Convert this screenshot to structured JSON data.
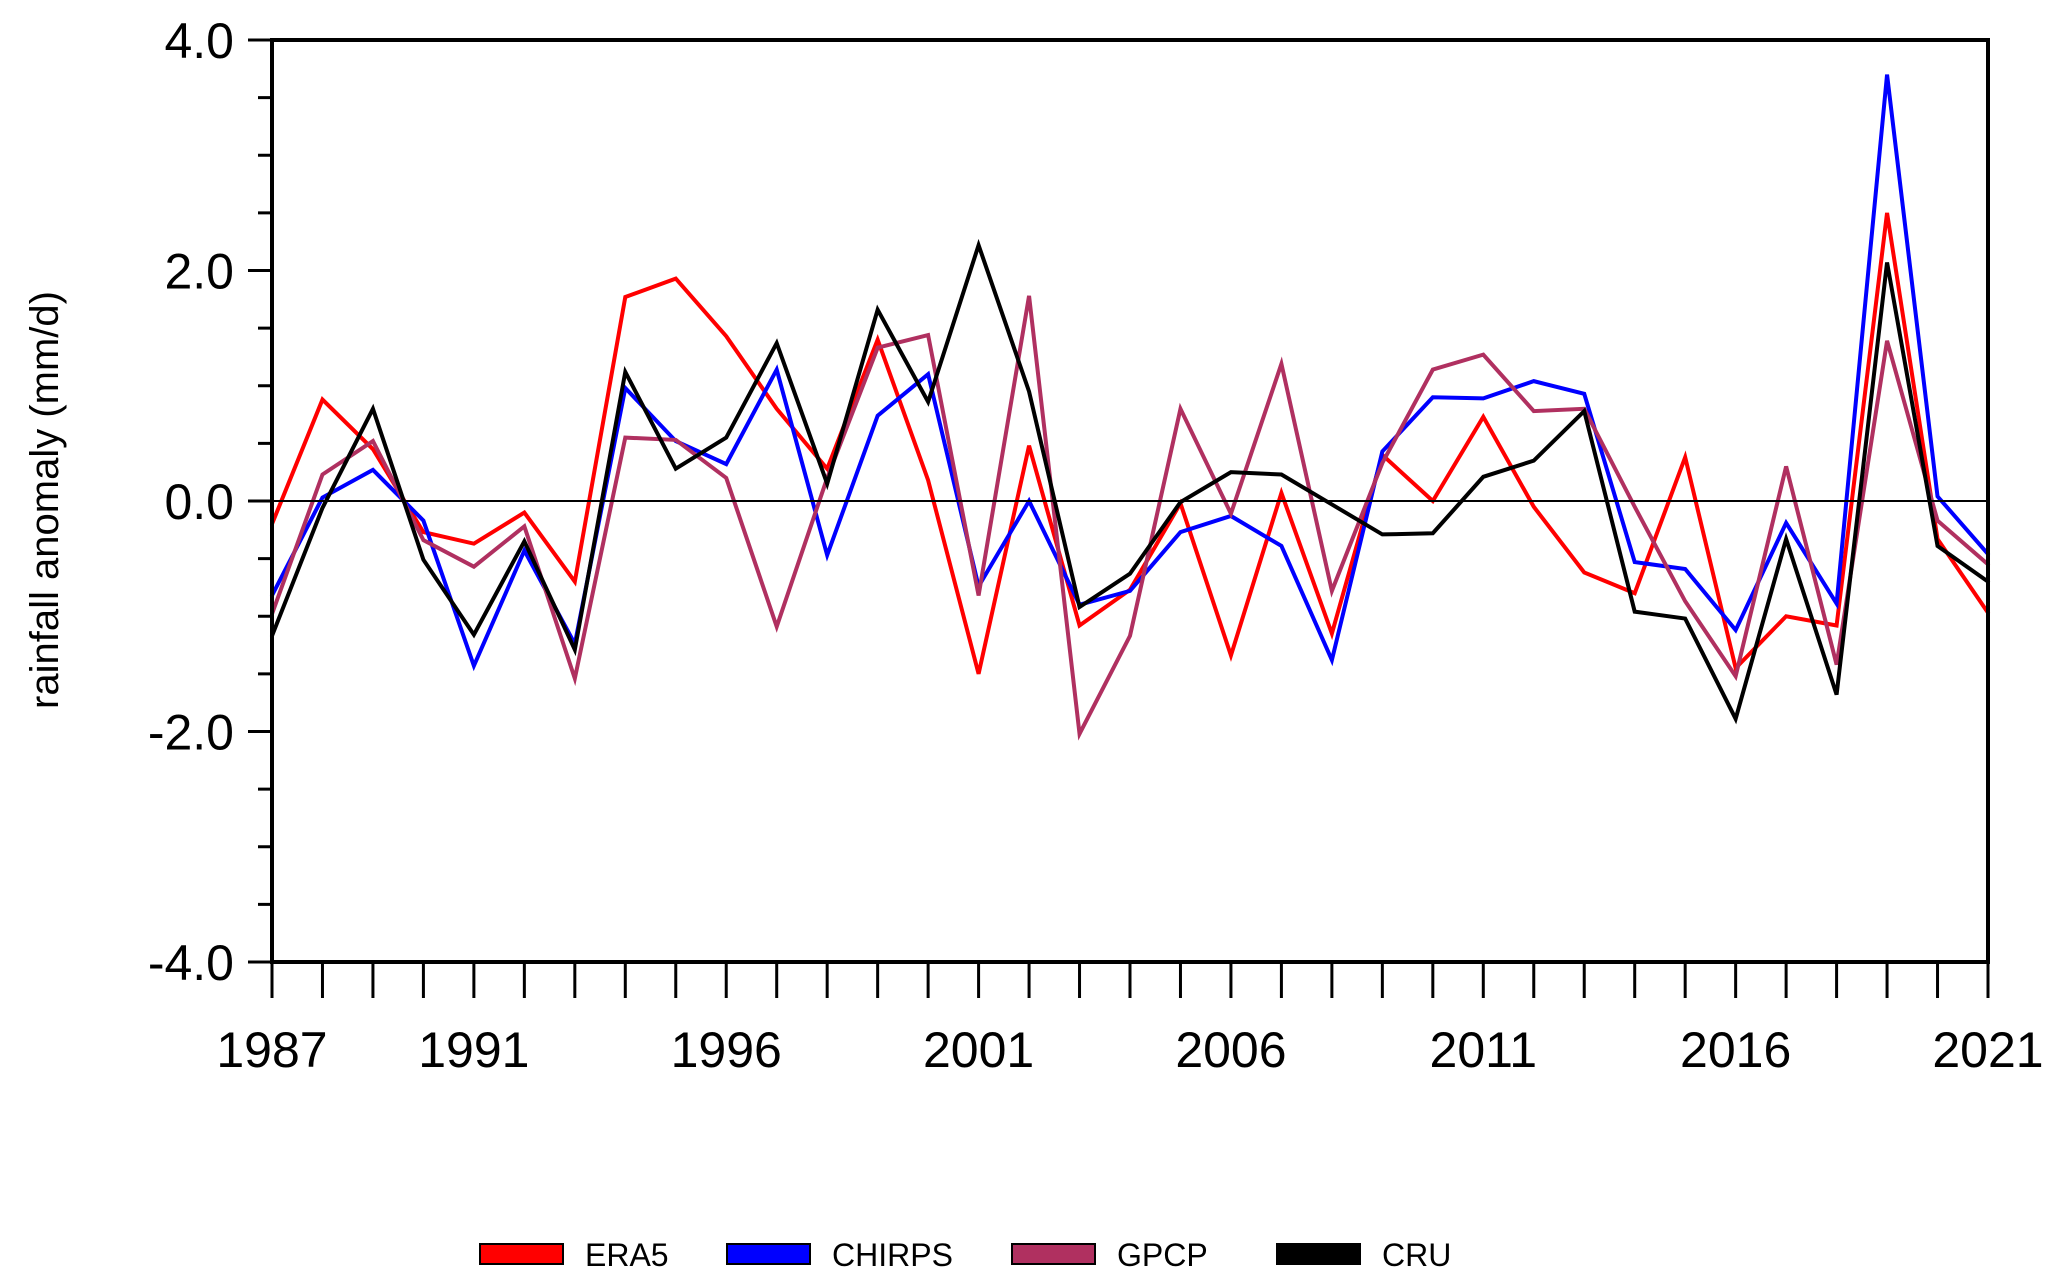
{
  "chart_data": {
    "type": "line",
    "title": "",
    "xlabel": "",
    "ylabel": "rainfall anomaly (mm/d)",
    "xlim": [
      1987,
      2021
    ],
    "ylim": [
      -4.0,
      4.0
    ],
    "x": [
      1987,
      1988,
      1989,
      1990,
      1991,
      1992,
      1993,
      1994,
      1995,
      1996,
      1997,
      1998,
      1999,
      2000,
      2001,
      2002,
      2003,
      2004,
      2005,
      2006,
      2007,
      2008,
      2009,
      2010,
      2011,
      2012,
      2013,
      2014,
      2015,
      2016,
      2017,
      2018,
      2019,
      2020,
      2021
    ],
    "x_tick_labels": [
      "1987",
      "1991",
      "1996",
      "2001",
      "2006",
      "2011",
      "2016",
      "2021"
    ],
    "x_tick_label_values": [
      1987,
      1991,
      1996,
      2001,
      2006,
      2011,
      2016,
      2021
    ],
    "y_tick_labels": [
      "4.0",
      "2.0",
      "0.0",
      "-2.0",
      "-4.0"
    ],
    "y_tick_label_values": [
      4.0,
      2.0,
      0.0,
      -2.0,
      -4.0
    ],
    "y_minor_step": 0.5,
    "zero_line": true,
    "grid": false,
    "legend_position": "bottom-center",
    "series": [
      {
        "name": "ERA5",
        "color": "#ff0000",
        "values": [
          -0.2,
          0.88,
          0.45,
          -0.27,
          -0.37,
          -0.1,
          -0.7,
          1.77,
          1.93,
          1.43,
          0.8,
          0.28,
          1.4,
          0.18,
          -1.5,
          0.48,
          -1.08,
          -0.77,
          -0.02,
          -1.34,
          0.07,
          -1.15,
          0.4,
          0.0,
          0.73,
          -0.05,
          -0.62,
          -0.8,
          0.38,
          -1.45,
          -1.0,
          -1.08,
          2.5,
          -0.33,
          -0.97
        ]
      },
      {
        "name": "CHIRPS",
        "color": "#0000ff",
        "values": [
          -0.82,
          0.03,
          0.27,
          -0.17,
          -1.43,
          -0.43,
          -1.24,
          0.98,
          0.52,
          0.32,
          1.14,
          -0.47,
          0.74,
          1.1,
          -0.74,
          0.0,
          -0.9,
          -0.78,
          -0.27,
          -0.13,
          -0.39,
          -1.38,
          0.43,
          0.9,
          0.89,
          1.04,
          0.93,
          -0.53,
          -0.59,
          -1.12,
          -0.19,
          -0.89,
          3.7,
          0.04,
          -0.46
        ]
      },
      {
        "name": "GPCP",
        "color": "#b03060",
        "values": [
          -0.98,
          0.23,
          0.52,
          -0.34,
          -0.57,
          -0.22,
          -1.54,
          0.55,
          0.53,
          0.2,
          -1.09,
          0.2,
          1.33,
          1.44,
          -0.82,
          1.78,
          -2.02,
          -1.17,
          0.8,
          -0.11,
          1.19,
          -0.78,
          0.33,
          1.14,
          1.27,
          0.78,
          0.8,
          -0.05,
          -0.87,
          -1.52,
          0.3,
          -1.42,
          1.39,
          -0.17,
          -0.55
        ]
      },
      {
        "name": "CRU",
        "color": "#000000",
        "values": [
          -1.17,
          -0.06,
          0.8,
          -0.51,
          -1.16,
          -0.35,
          -1.29,
          1.12,
          0.28,
          0.55,
          1.37,
          0.15,
          1.66,
          0.86,
          2.22,
          0.95,
          -0.92,
          -0.63,
          -0.01,
          0.25,
          0.23,
          -0.03,
          -0.29,
          -0.28,
          0.21,
          0.35,
          0.78,
          -0.96,
          -1.02,
          -1.89,
          -0.33,
          -1.68,
          2.07,
          -0.39,
          -0.7
        ]
      }
    ]
  }
}
